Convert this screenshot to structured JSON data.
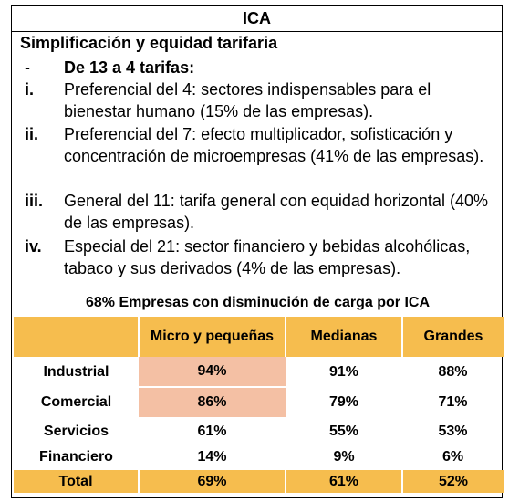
{
  "header": {
    "title": "ICA"
  },
  "section": {
    "title": "Simplificación y equidad tarifaria"
  },
  "intro": {
    "marker": "-",
    "text": "De 13 a 4 tarifas:"
  },
  "items": [
    {
      "marker": "i.",
      "text": "Preferencial del 4: sectores indispensables para el bienestar humano (15% de las empresas)."
    },
    {
      "marker": "ii.",
      "text": "Preferencial del 7: efecto multiplicador, sofisticación y concentración de microempresas (41% de las empresas)."
    },
    {
      "marker": "iii.",
      "text": "General del 11: tarifa general con equidad horizontal (40% de las empresas)."
    },
    {
      "marker": "iv.",
      "text": "Especial del 21: sector financiero y bebidas alcohólicas, tabaco y sus derivados (4% de las empresas)."
    }
  ],
  "table": {
    "caption": "68% Empresas con disminución de carga por ICA",
    "headers": [
      "",
      "Micro y pequeñas",
      "Medianas",
      "Grandes"
    ],
    "rows": [
      {
        "label": "Industrial",
        "values": [
          "94%",
          "91%",
          "88%"
        ]
      },
      {
        "label": "Comercial",
        "values": [
          "86%",
          "79%",
          "71%"
        ]
      },
      {
        "label": "Servicios",
        "values": [
          "61%",
          "55%",
          "53%"
        ]
      },
      {
        "label": "Financiero",
        "values": [
          "14%",
          "9%",
          "6%"
        ]
      }
    ],
    "total": {
      "label": "Total",
      "values": [
        "69%",
        "61%",
        "52%"
      ]
    }
  },
  "colors": {
    "header_fill": "#f6bd4e",
    "highlight_fill": "#f4c0a4"
  }
}
